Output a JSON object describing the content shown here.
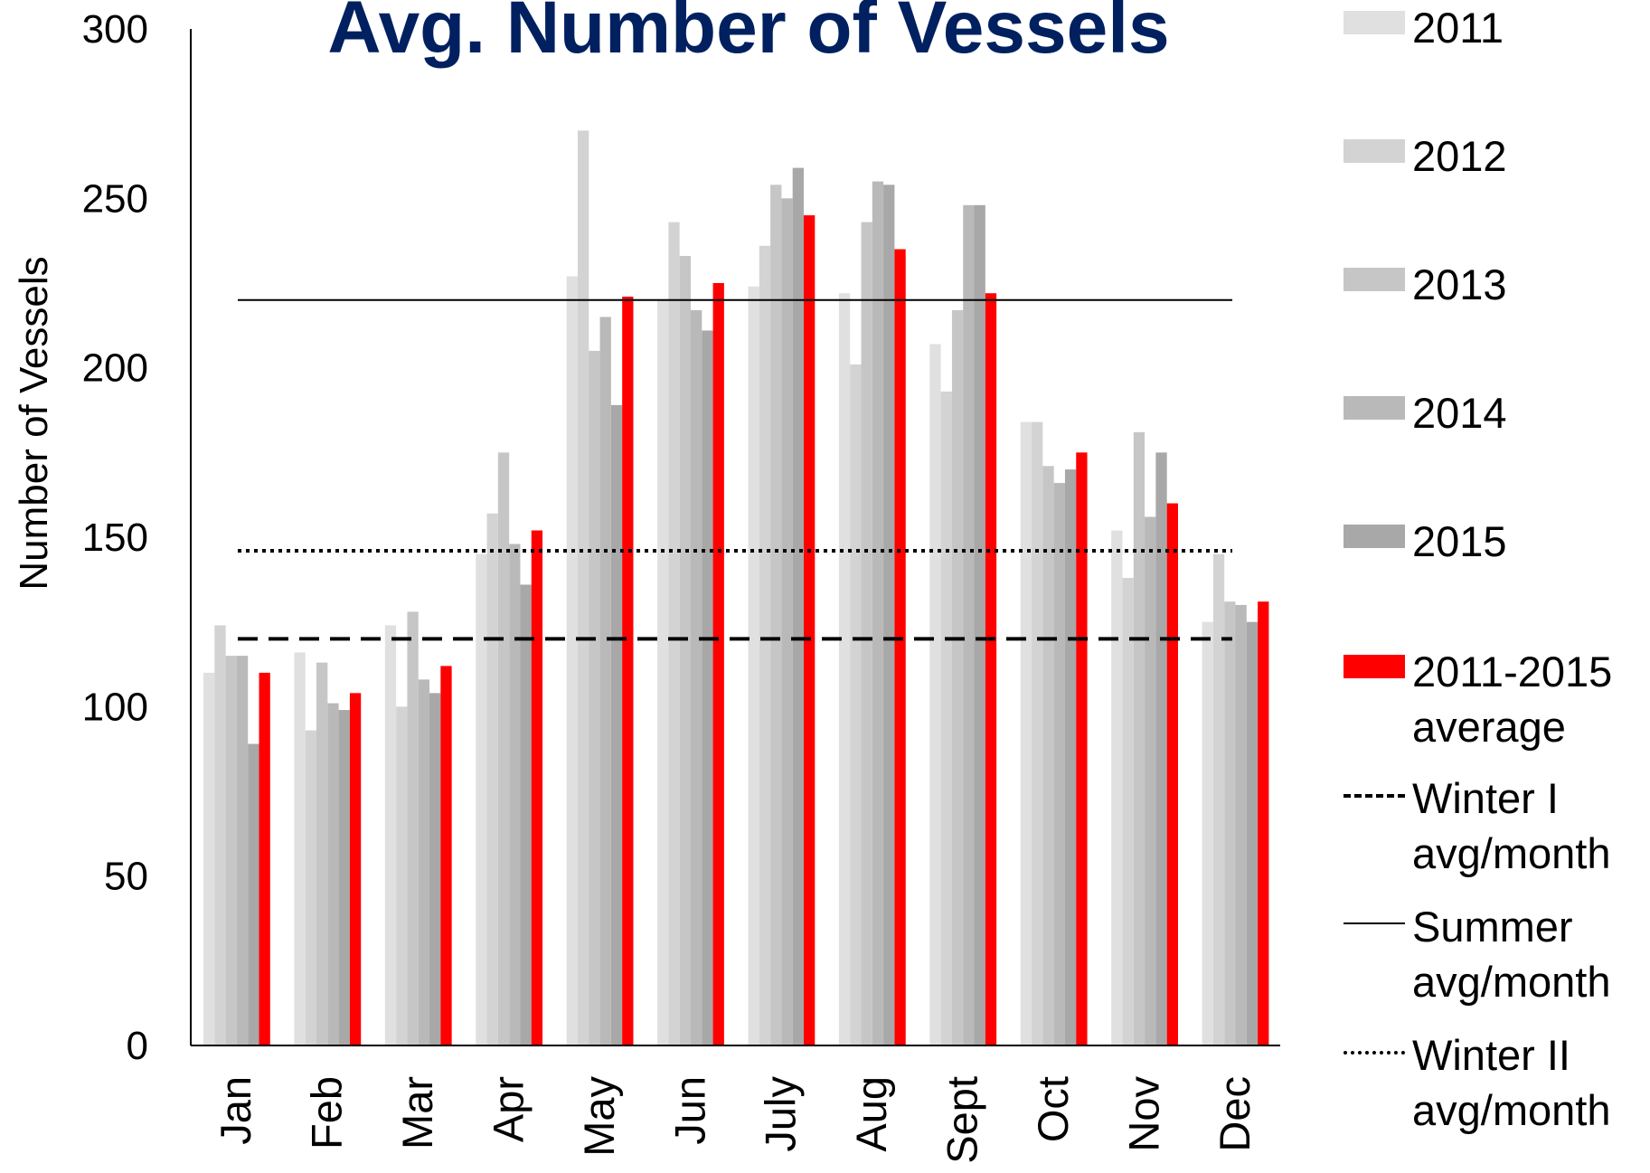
{
  "chart_data": {
    "type": "bar",
    "title": "Avg. Number of Vessels",
    "y_label": "Number of Vessels",
    "categories": [
      "Jan",
      "Feb",
      "Mar",
      "Apr",
      "May",
      "Jun",
      "July",
      "Aug",
      "Sept",
      "Oct",
      "Nov",
      "Dec"
    ],
    "series": [
      {
        "name": "2011",
        "color": "#e0e0e0",
        "values": [
          110,
          116,
          124,
          145,
          227,
          220,
          224,
          222,
          207,
          184,
          152,
          125
        ]
      },
      {
        "name": "2012",
        "color": "#d3d3d3",
        "values": [
          124,
          93,
          100,
          157,
          270,
          243,
          236,
          201,
          193,
          184,
          138,
          145
        ]
      },
      {
        "name": "2013",
        "color": "#c6c6c6",
        "values": [
          115,
          113,
          128,
          175,
          205,
          233,
          254,
          243,
          217,
          171,
          181,
          131
        ]
      },
      {
        "name": "2014",
        "color": "#b9b9b9",
        "values": [
          115,
          101,
          108,
          148,
          215,
          217,
          250,
          255,
          248,
          166,
          156,
          130
        ]
      },
      {
        "name": "2015",
        "color": "#a8a8a8",
        "values": [
          89,
          99,
          104,
          136,
          189,
          211,
          259,
          254,
          248,
          170,
          175,
          125
        ]
      },
      {
        "name": "2011-2015 average",
        "color": "#ff0000",
        "values": [
          110,
          104,
          112,
          152,
          221,
          225,
          245,
          235,
          222,
          175,
          160,
          131
        ]
      }
    ],
    "reference_lines": [
      {
        "name": "Winter I avg/month",
        "value": 120,
        "style": "dashed",
        "color": "#000000"
      },
      {
        "name": "Summer avg/month",
        "value": 220,
        "style": "solid",
        "color": "#000000"
      },
      {
        "name": "Winter II avg/month",
        "value": 146,
        "style": "dotted",
        "color": "#000000"
      }
    ],
    "ylim": [
      0,
      300
    ],
    "yticks": [
      0,
      50,
      100,
      150,
      200,
      250,
      300
    ],
    "grid": false
  }
}
